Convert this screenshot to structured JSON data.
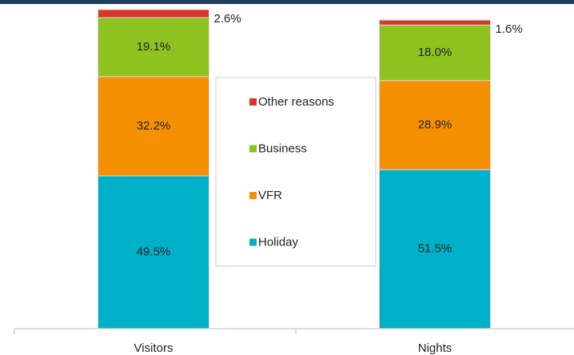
{
  "chart_data": {
    "type": "stacked_bar",
    "categories": [
      "Visitors",
      "Nights"
    ],
    "series": [
      {
        "name": "Holiday",
        "color": "#00b0c8",
        "values": [
          49.5,
          51.5
        ],
        "value_labels": [
          "49.5%",
          "51.5%"
        ]
      },
      {
        "name": "VFR",
        "color": "#f59100",
        "values": [
          32.2,
          28.9
        ],
        "value_labels": [
          "32.2%",
          "28.9%"
        ]
      },
      {
        "name": "Business",
        "color": "#8dc21f",
        "values": [
          19.1,
          18.0
        ],
        "value_labels": [
          "19.1%",
          "18.0%"
        ]
      },
      {
        "name": "Other reasons",
        "color": "#d9362b",
        "values": [
          2.6,
          1.6
        ],
        "value_labels": [
          "2.6%",
          "1.6%"
        ]
      }
    ],
    "ylim": [
      0,
      103.4
    ],
    "legend": "center"
  }
}
